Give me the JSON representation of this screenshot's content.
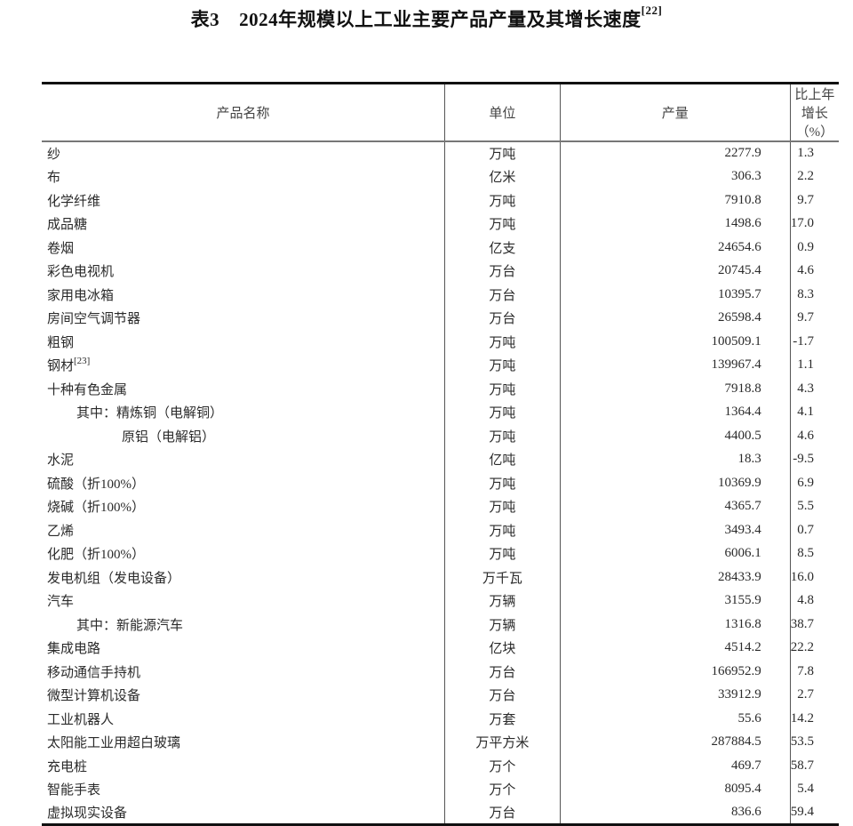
{
  "title": {
    "label": "表3",
    "text": "2024年规模以上工业主要产品产量及其增长速度",
    "footnote": "[22]"
  },
  "table": {
    "headers": [
      "产品名称",
      "单位",
      "产量",
      "比上年增长（%）"
    ],
    "rows": [
      {
        "name": "纱",
        "unit": "万吨",
        "output": "2277.9",
        "growth": "1.3",
        "indent": 0
      },
      {
        "name": "布",
        "unit": "亿米",
        "output": "306.3",
        "growth": "2.2",
        "indent": 0
      },
      {
        "name": "化学纤维",
        "unit": "万吨",
        "output": "7910.8",
        "growth": "9.7",
        "indent": 0
      },
      {
        "name": "成品糖",
        "unit": "万吨",
        "output": "1498.6",
        "growth": "17.0",
        "indent": 0
      },
      {
        "name": "卷烟",
        "unit": "亿支",
        "output": "24654.6",
        "growth": "0.9",
        "indent": 0
      },
      {
        "name": "彩色电视机",
        "unit": "万台",
        "output": "20745.4",
        "growth": "4.6",
        "indent": 0
      },
      {
        "name": "家用电冰箱",
        "unit": "万台",
        "output": "10395.7",
        "growth": "8.3",
        "indent": 0
      },
      {
        "name": "房间空气调节器",
        "unit": "万台",
        "output": "26598.4",
        "growth": "9.7",
        "indent": 0
      },
      {
        "name": "粗钢",
        "unit": "万吨",
        "output": "100509.1",
        "growth": "-1.7",
        "indent": 0
      },
      {
        "name": "钢材",
        "footnote": "[23]",
        "unit": "万吨",
        "output": "139967.4",
        "growth": "1.1",
        "indent": 0
      },
      {
        "name": "十种有色金属",
        "unit": "万吨",
        "output": "7918.8",
        "growth": "4.3",
        "indent": 0
      },
      {
        "name": "其中：精炼铜（电解铜）",
        "unit": "万吨",
        "output": "1364.4",
        "growth": "4.1",
        "indent": 1
      },
      {
        "name": "原铝（电解铝）",
        "unit": "万吨",
        "output": "4400.5",
        "growth": "4.6",
        "indent": 2
      },
      {
        "name": "水泥",
        "unit": "亿吨",
        "output": "18.3",
        "growth": "-9.5",
        "indent": 0
      },
      {
        "name": "硫酸（折100%）",
        "unit": "万吨",
        "output": "10369.9",
        "growth": "6.9",
        "indent": 0
      },
      {
        "name": "烧碱（折100%）",
        "unit": "万吨",
        "output": "4365.7",
        "growth": "5.5",
        "indent": 0
      },
      {
        "name": "乙烯",
        "unit": "万吨",
        "output": "3493.4",
        "growth": "0.7",
        "indent": 0
      },
      {
        "name": "化肥（折100%）",
        "unit": "万吨",
        "output": "6006.1",
        "growth": "8.5",
        "indent": 0
      },
      {
        "name": "发电机组（发电设备）",
        "unit": "万千瓦",
        "output": "28433.9",
        "growth": "16.0",
        "indent": 0
      },
      {
        "name": "汽车",
        "unit": "万辆",
        "output": "3155.9",
        "growth": "4.8",
        "indent": 0
      },
      {
        "name": "其中：新能源汽车",
        "unit": "万辆",
        "output": "1316.8",
        "growth": "38.7",
        "indent": 1
      },
      {
        "name": "集成电路",
        "unit": "亿块",
        "output": "4514.2",
        "growth": "22.2",
        "indent": 0
      },
      {
        "name": "移动通信手持机",
        "unit": "万台",
        "output": "166952.9",
        "growth": "7.8",
        "indent": 0
      },
      {
        "name": "微型计算机设备",
        "unit": "万台",
        "output": "33912.9",
        "growth": "2.7",
        "indent": 0
      },
      {
        "name": "工业机器人",
        "unit": "万套",
        "output": "55.6",
        "growth": "14.2",
        "indent": 0
      },
      {
        "name": "太阳能工业用超白玻璃",
        "unit": "万平方米",
        "output": "287884.5",
        "growth": "53.5",
        "indent": 0
      },
      {
        "name": "充电桩",
        "unit": "万个",
        "output": "469.7",
        "growth": "58.7",
        "indent": 0
      },
      {
        "name": "智能手表",
        "unit": "万个",
        "output": "8095.4",
        "growth": "5.4",
        "indent": 0
      },
      {
        "name": "虚拟现实设备",
        "unit": "万台",
        "output": "836.6",
        "growth": "59.4",
        "indent": 0
      }
    ]
  }
}
